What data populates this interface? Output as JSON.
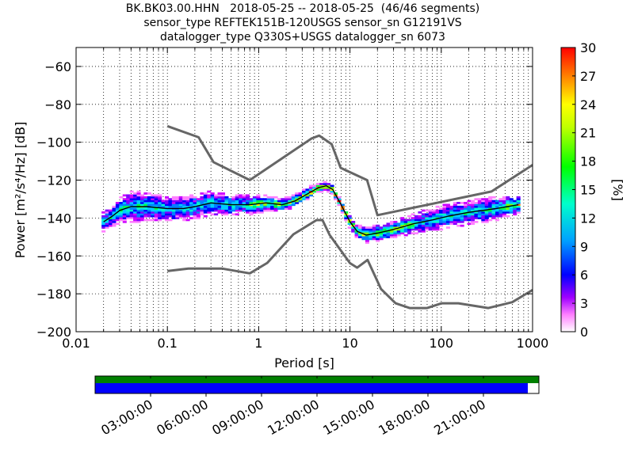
{
  "chart_data": {
    "type": "heatmap",
    "title_lines": [
      "BK.BK03.00.HHN   2018-05-25 -- 2018-05-25  (46/46 segments)",
      "sensor_type REFTEK151B-120USGS sensor_sn G12191VS",
      "datalogger_type Q330S+USGS datalogger_sn 6073"
    ],
    "xlabel": "Period [s]",
    "ylabel": "Power [m²/s⁴/Hz] [dB]",
    "x_scale": "log",
    "xlim": [
      0.01,
      1000
    ],
    "ylim": [
      -200,
      -50
    ],
    "x_ticks": [
      {
        "value": 0.01,
        "label": "0.01"
      },
      {
        "value": 0.1,
        "label": "0.1"
      },
      {
        "value": 1,
        "label": "1"
      },
      {
        "value": 10,
        "label": "10"
      },
      {
        "value": 100,
        "label": "100"
      },
      {
        "value": 1000,
        "label": "1000"
      }
    ],
    "y_ticks": [
      {
        "value": -60,
        "label": "−60"
      },
      {
        "value": -80,
        "label": "−80"
      },
      {
        "value": -100,
        "label": "−100"
      },
      {
        "value": -120,
        "label": "−120"
      },
      {
        "value": -140,
        "label": "−140"
      },
      {
        "value": -160,
        "label": "−160"
      },
      {
        "value": -180,
        "label": "−180"
      },
      {
        "value": -200,
        "label": "−200"
      }
    ],
    "grid": true,
    "colorbar": {
      "label": "[%]",
      "range": [
        0,
        30
      ],
      "ticks": [
        {
          "value": 0,
          "label": "0"
        },
        {
          "value": 3,
          "label": "3"
        },
        {
          "value": 6,
          "label": "6"
        },
        {
          "value": 9,
          "label": "9"
        },
        {
          "value": 12,
          "label": "12"
        },
        {
          "value": 15,
          "label": "15"
        },
        {
          "value": 18,
          "label": "18"
        },
        {
          "value": 21,
          "label": "21"
        },
        {
          "value": 24,
          "label": "24"
        },
        {
          "value": 27,
          "label": "27"
        },
        {
          "value": 30,
          "label": "30"
        }
      ]
    },
    "nhnm": {
      "period": [
        0.1,
        0.22,
        0.32,
        0.8,
        3.8,
        4.6,
        6.3,
        7.9,
        15.4,
        20,
        354.8,
        1000
      ],
      "power": [
        -91.5,
        -97.4,
        -110.5,
        -120,
        -98,
        -96.5,
        -101,
        -113.5,
        -120,
        -138.5,
        -126,
        -112
      ]
    },
    "nlnm": {
      "period": [
        0.1,
        0.17,
        0.4,
        0.8,
        1.24,
        2.4,
        4.3,
        5,
        6,
        10,
        12,
        15.6,
        21.9,
        31.6,
        45,
        70,
        101,
        154,
        328,
        600,
        1000
      ],
      "power": [
        -168,
        -166.7,
        -166.7,
        -169.2,
        -163.7,
        -148.6,
        -141.1,
        -141.1,
        -149,
        -163.8,
        -166.2,
        -162.1,
        -177.5,
        -185,
        -187.5,
        -187.5,
        -185,
        -185,
        -187.5,
        -184.4,
        -178
      ]
    },
    "median": {
      "period": [
        0.02,
        0.025,
        0.03,
        0.04,
        0.06,
        0.1,
        0.15,
        0.2,
        0.3,
        0.5,
        0.8,
        1.2,
        1.8,
        2.5,
        3.5,
        4.5,
        5.5,
        6.5,
        8,
        10,
        12,
        15,
        20,
        30,
        50,
        80,
        120,
        200,
        400,
        700
      ],
      "power": [
        -142,
        -139,
        -136,
        -134,
        -134,
        -135,
        -135,
        -134,
        -132,
        -133,
        -133,
        -132,
        -133,
        -131,
        -127,
        -124,
        -123,
        -125,
        -133,
        -142,
        -147,
        -149,
        -148,
        -146,
        -143,
        -141,
        -139,
        -137,
        -135,
        -133
      ]
    },
    "spread": {
      "period": [
        0.02,
        0.025,
        0.03,
        0.04,
        0.06,
        0.1,
        0.15,
        0.2,
        0.3,
        0.5,
        0.8,
        1.2,
        1.8,
        2.5,
        3.5,
        4.5,
        5.5,
        6.5,
        8,
        10,
        12,
        15,
        20,
        30,
        50,
        80,
        120,
        200,
        400,
        700
      ],
      "half_width_db": [
        5,
        5,
        6,
        8,
        7,
        6,
        6,
        6,
        6,
        5,
        5,
        4,
        3,
        3,
        3,
        2,
        2,
        2,
        2,
        3,
        3,
        4,
        4,
        4,
        5,
        6,
        6,
        6,
        6,
        4
      ]
    }
  },
  "timeline": {
    "tick_labels": [
      "03:00:00",
      "06:00:00",
      "09:00:00",
      "12:00:00",
      "15:00:00",
      "18:00:00",
      "21:00:00"
    ],
    "tick_hours": [
      3,
      6,
      9,
      12,
      15,
      18,
      21
    ],
    "span_hours": 24,
    "data_coverage_fraction": 1.0,
    "psd_coverage_fraction": 0.975,
    "data_color": "#008000",
    "psd_color": "#0000ff"
  },
  "colors": {
    "noise_model": "#666666",
    "median": "#000000"
  }
}
